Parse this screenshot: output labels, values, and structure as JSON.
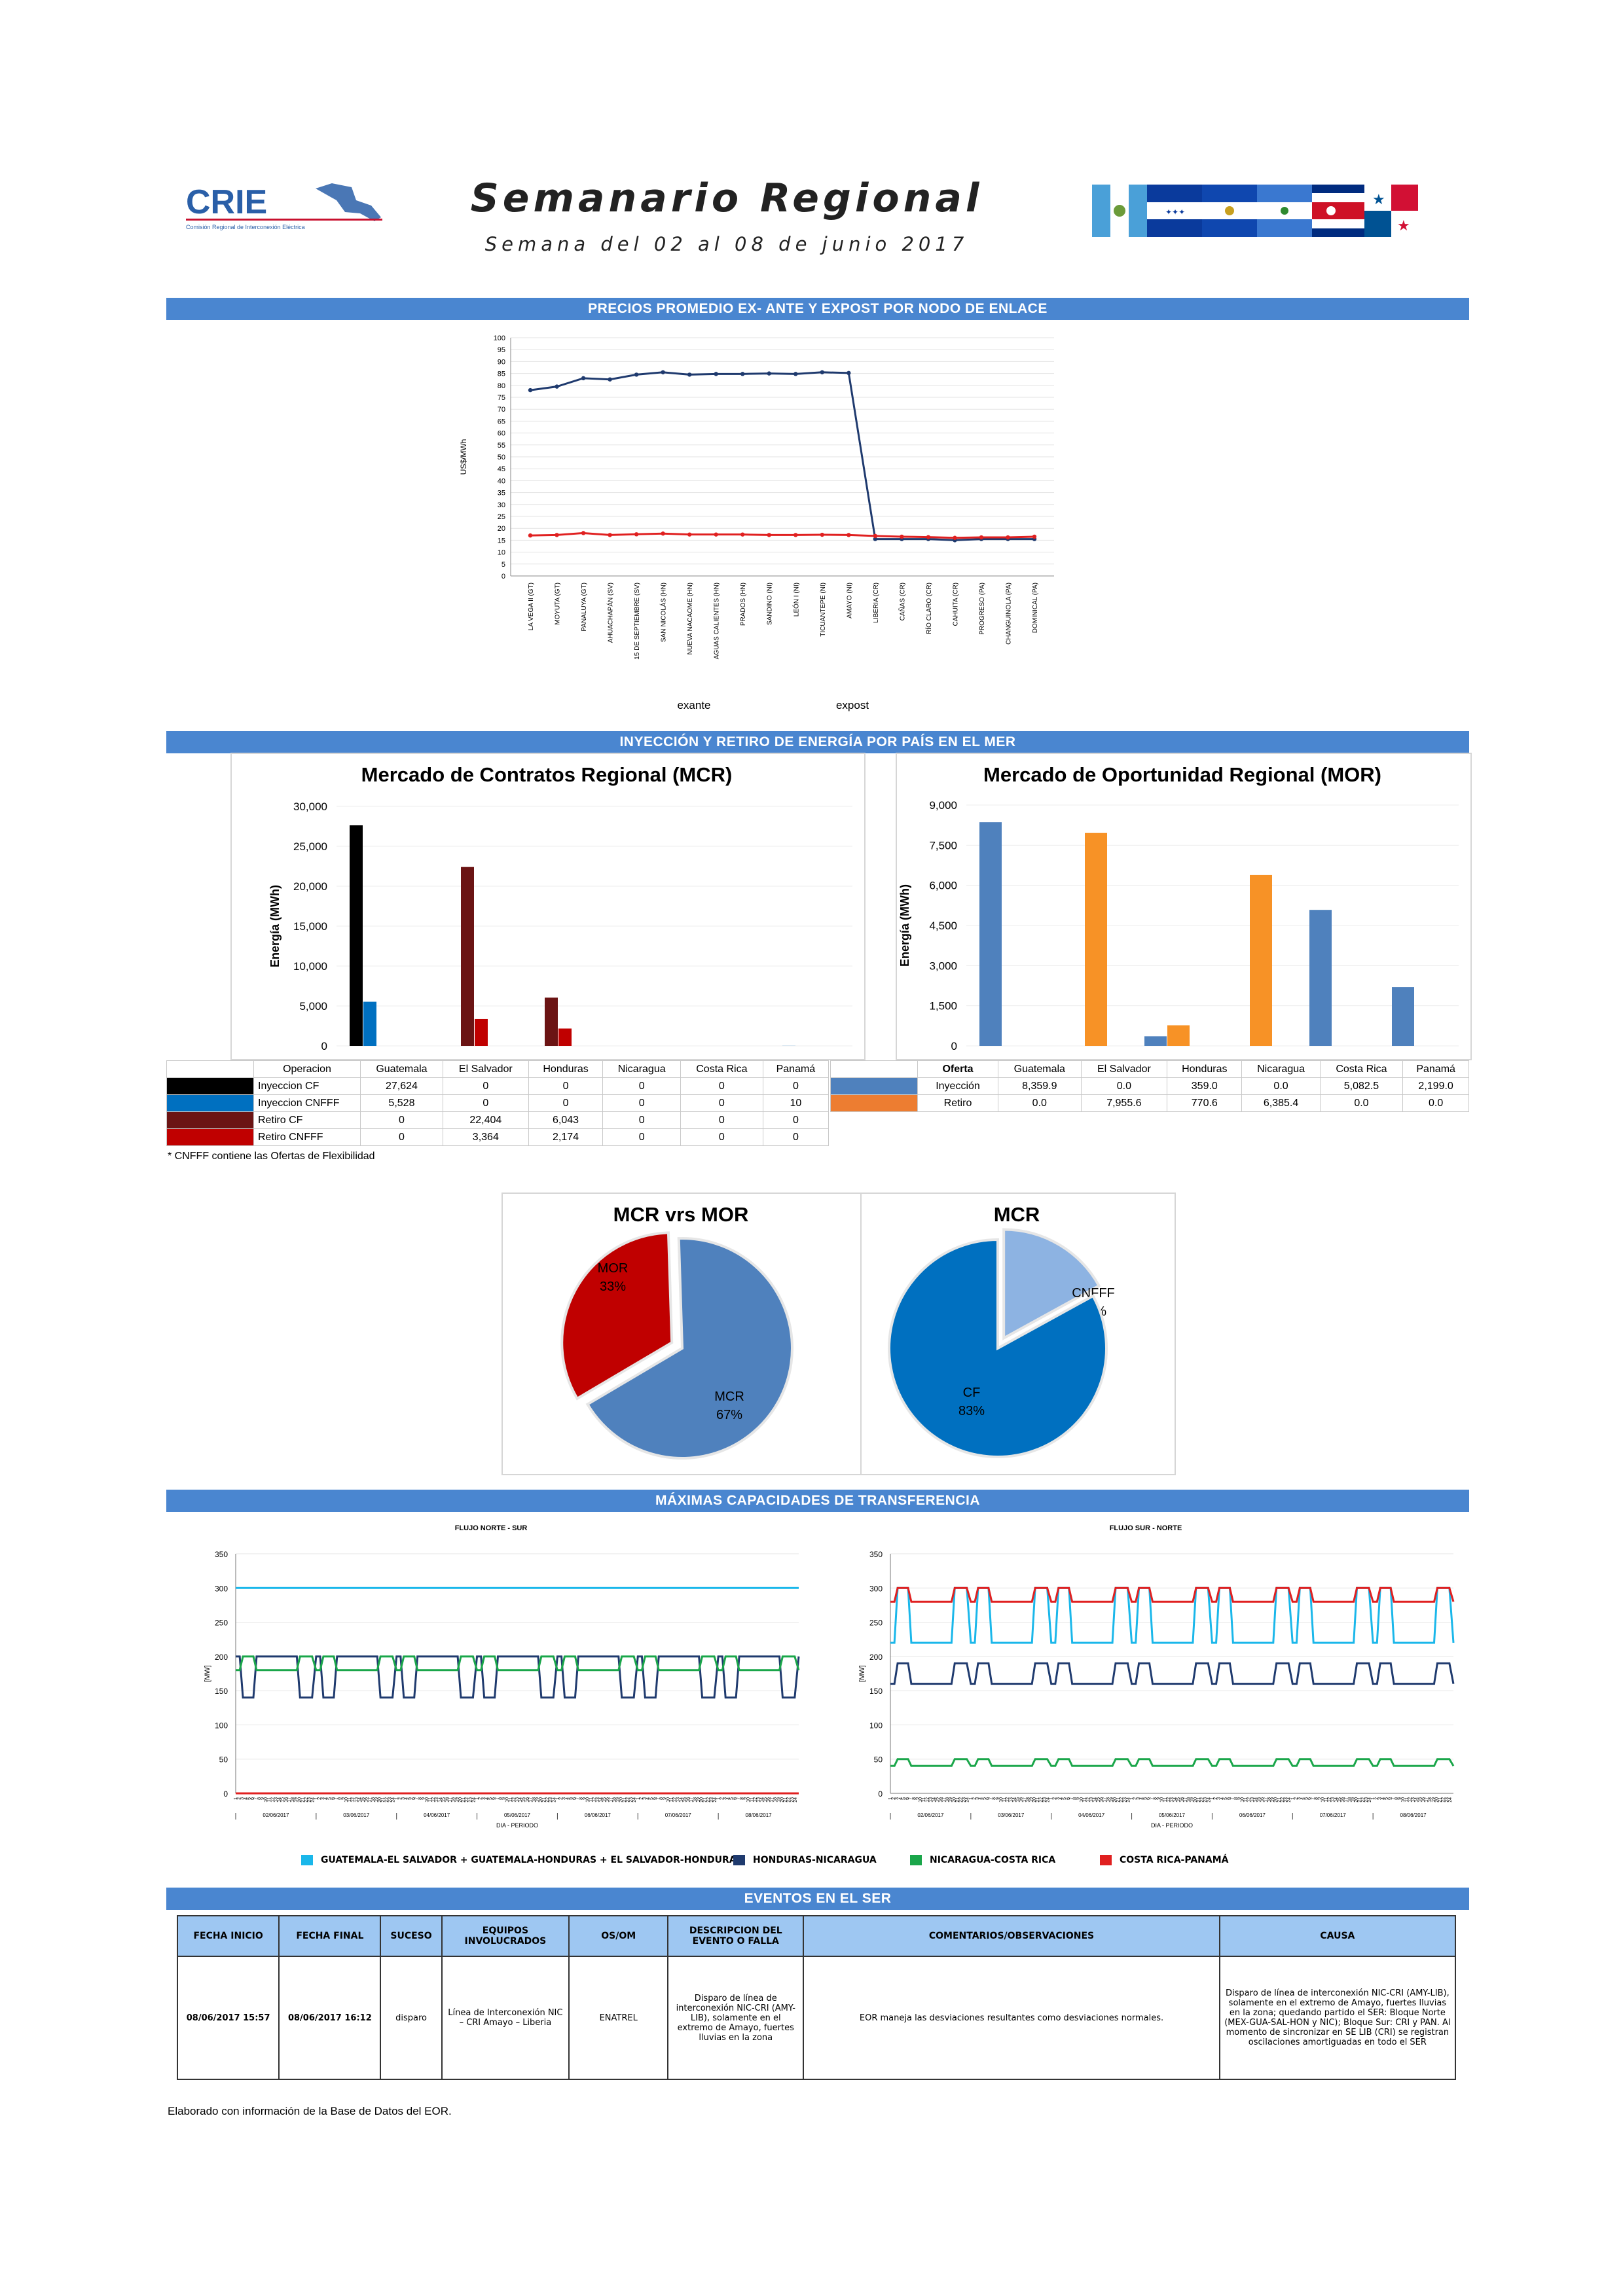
{
  "header": {
    "logo_text": "CRIE",
    "logo_subtitle": "Comisión Regional de Interconexión Eléctrica",
    "title": "Semanario Regional",
    "subtitle": "Semana del 02 al 08 de junio 2017"
  },
  "section_titles": {
    "prices": "PRECIOS PROMEDIO EX- ANTE Y EXPOST POR NODO DE ENLACE",
    "energy": "INYECCIÓN Y RETIRO DE ENERGÍA POR PAÍS EN EL MER",
    "transfer": "MÁXIMAS CAPACIDADES DE TRANSFERENCIA",
    "events": "EVENTOS EN EL SER"
  },
  "chart_data": [
    {
      "type": "line",
      "ylabel": "US$/MWh",
      "ylim": [
        0,
        100
      ],
      "yticks": [
        0,
        5,
        10,
        15,
        20,
        25,
        30,
        35,
        40,
        45,
        50,
        55,
        60,
        65,
        70,
        75,
        80,
        85,
        90,
        95,
        100
      ],
      "categories": [
        "LA VEGA II (GT)",
        "MOYUTA (GT)",
        "PANALUYA (GT)",
        "AHUACHAPÁN (SV)",
        "15 DE SEPTIEMBRE (SV)",
        "SAN NICOLÁS (HN)",
        "NUEVA NACAOME (HN)",
        "AGUAS CALIENTES (HN)",
        "PRADOS (HN)",
        "SANDINO (NI)",
        "LEÓN I (NI)",
        "TICUANTEPE (NI)",
        "AMAYO (NI)",
        "LIBERIA (CR)",
        "CAÑAS (CR)",
        "RÍO CLARO (CR)",
        "CAHUITA (CR)",
        "PROGRESO (PA)",
        "CHANGUINOLA (PA)",
        "DOMINICAL (PA)"
      ],
      "series": [
        {
          "name": "exante",
          "color": "#1f3a6e",
          "values": [
            78,
            79.5,
            83,
            82.5,
            84.5,
            85.5,
            84.5,
            84.8,
            84.8,
            85,
            84.8,
            85.5,
            85.2,
            15.5,
            15.5,
            15.5,
            15,
            15.5,
            15.5,
            15.5
          ]
        },
        {
          "name": "expost",
          "color": "#e02020",
          "values": [
            17,
            17.2,
            18,
            17.2,
            17.5,
            17.8,
            17.4,
            17.4,
            17.4,
            17.2,
            17.2,
            17.3,
            17.2,
            16.8,
            16.5,
            16.3,
            16,
            16.2,
            16.2,
            16.5
          ]
        }
      ]
    },
    {
      "type": "bar",
      "title": "Mercado de Contratos Regional (MCR)",
      "ylabel": "Energía (MWh)",
      "ylim": [
        0,
        30000
      ],
      "yticks": [
        "0",
        "5,000",
        "10,000",
        "15,000",
        "20,000",
        "25,000",
        "30,000"
      ],
      "categories": [
        "Guatemala",
        "El Salvador",
        "Honduras",
        "Nicaragua",
        "Costa Rica",
        "Panamá"
      ],
      "series": [
        {
          "name": "Inyeccion CF",
          "color": "#000000",
          "values": [
            27624,
            0,
            0,
            0,
            0,
            0
          ]
        },
        {
          "name": "Inyeccion CNFFF",
          "color": "#0070c0",
          "values": [
            5528,
            0,
            0,
            0,
            0,
            10
          ]
        },
        {
          "name": "Retiro CF",
          "color": "#6b1414",
          "values": [
            0,
            22404,
            6043,
            0,
            0,
            0
          ]
        },
        {
          "name": "Retiro CNFFF",
          "color": "#c00000",
          "values": [
            0,
            3364,
            2174,
            0,
            0,
            0
          ]
        }
      ]
    },
    {
      "type": "bar",
      "title": "Mercado de Oportunidad Regional (MOR)",
      "ylabel": "Energía (MWh)",
      "ylim": [
        0,
        9000
      ],
      "yticks": [
        "0",
        "1,500",
        "3,000",
        "4,500",
        "6,000",
        "7,500",
        "9,000"
      ],
      "categories": [
        "Guatemala",
        "El Salvador",
        "Honduras",
        "Nicaragua",
        "Costa Rica",
        "Panamá"
      ],
      "series": [
        {
          "name": "Inyección",
          "color": "#4f81bd",
          "values": [
            8359.9,
            0.0,
            359.0,
            0.0,
            5082.5,
            2199.0
          ]
        },
        {
          "name": "Retiro",
          "color": "#f79226",
          "values": [
            0.0,
            7955.6,
            770.6,
            6385.4,
            0.0,
            0.0
          ]
        }
      ]
    },
    {
      "type": "pie",
      "title": "MCR vrs MOR",
      "slices": [
        {
          "label": "MOR",
          "value": 33,
          "color": "#c00000"
        },
        {
          "label": "MCR",
          "value": 67,
          "color": "#4f81bd"
        }
      ]
    },
    {
      "type": "pie",
      "title": "MCR",
      "slices": [
        {
          "label": "CNFFF",
          "value": 17,
          "color": "#8db3e2"
        },
        {
          "label": "CF",
          "value": 83,
          "color": "#0070c0"
        }
      ]
    },
    {
      "type": "line",
      "title": "FLUJO NORTE - SUR",
      "ylabel": "[MW]",
      "xlabel": "DIA - PERIODO",
      "ylim": [
        0,
        350
      ],
      "yticks": [
        0,
        50,
        100,
        150,
        200,
        250,
        300,
        350
      ],
      "days": [
        "02/06/2017",
        "03/06/2017",
        "04/06/2017",
        "05/06/2017",
        "06/06/2017",
        "07/06/2017",
        "08/06/2017"
      ],
      "series": [
        {
          "name": "GUATEMALA-EL SALVADOR + GUATEMALA-HONDURAS + EL SALVADOR-HONDURAS",
          "color": "#1ab7ea",
          "base": 300,
          "dip": 300
        },
        {
          "name": "HONDURAS-NICARAGUA",
          "color": "#1f3a6e",
          "base": 200,
          "dip": 140
        },
        {
          "name": "NICARAGUA-COSTA RICA",
          "color": "#1aa64a",
          "base": 180,
          "dip": 200
        },
        {
          "name": "COSTA RICA-PANAMÁ",
          "color": "#e02020",
          "base": 0,
          "dip": 0
        }
      ]
    },
    {
      "type": "line",
      "title": "FLUJO SUR - NORTE",
      "ylabel": "[MW]",
      "xlabel": "DIA - PERIODO",
      "ylim": [
        0,
        350
      ],
      "yticks": [
        0,
        50,
        100,
        150,
        200,
        250,
        300,
        350
      ],
      "days": [
        "02/06/2017",
        "03/06/2017",
        "04/06/2017",
        "05/06/2017",
        "06/06/2017",
        "07/06/2017",
        "08/06/2017"
      ],
      "series": [
        {
          "name": "GUATEMALA-EL SALVADOR + GUATEMALA-HONDURAS + EL SALVADOR-HONDURAS",
          "color": "#1ab7ea",
          "base": 220,
          "dip": 300
        },
        {
          "name": "HONDURAS-NICARAGUA",
          "color": "#1f3a6e",
          "base": 160,
          "dip": 190
        },
        {
          "name": "NICARAGUA-COSTA RICA",
          "color": "#1aa64a",
          "base": 40,
          "dip": 50
        },
        {
          "name": "COSTA RICA-PANAMÁ",
          "color": "#e02020",
          "base": 280,
          "dip": 300
        }
      ]
    }
  ],
  "mcr_table": {
    "header": [
      "Operacion",
      "Guatemala",
      "El Salvador",
      "Honduras",
      "Nicaragua",
      "Costa Rica",
      "Panamá"
    ],
    "rows": [
      {
        "label": "Inyeccion CF",
        "color": "#000000",
        "values": [
          "27,624",
          "0",
          "0",
          "0",
          "0",
          "0"
        ]
      },
      {
        "label": "Inyeccion CNFFF",
        "color": "#0070c0",
        "values": [
          "5,528",
          "0",
          "0",
          "0",
          "0",
          "10"
        ]
      },
      {
        "label": "Retiro CF",
        "color": "#6b1414",
        "values": [
          "0",
          "22,404",
          "6,043",
          "0",
          "0",
          "0"
        ]
      },
      {
        "label": "Retiro CNFFF",
        "color": "#c00000",
        "values": [
          "0",
          "3,364",
          "2,174",
          "0",
          "0",
          "0"
        ]
      }
    ],
    "footnote": "* CNFFF contiene las Ofertas de Flexibilidad"
  },
  "mor_table": {
    "header": [
      "Oferta",
      "Guatemala",
      "El Salvador",
      "Honduras",
      "Nicaragua",
      "Costa Rica",
      "Panamá"
    ],
    "rows": [
      {
        "label": "Inyección",
        "color": "#4f81bd",
        "values": [
          "8,359.9",
          "0.0",
          "359.0",
          "0.0",
          "5,082.5",
          "2,199.0"
        ]
      },
      {
        "label": "Retiro",
        "color": "#ed7d31",
        "values": [
          "0.0",
          "7,955.6",
          "770.6",
          "6,385.4",
          "0.0",
          "0.0"
        ]
      }
    ]
  },
  "price_legend": {
    "exante": "exante",
    "expost": "expost"
  },
  "transfer_legend": [
    {
      "label": "GUATEMALA-EL SALVADOR + GUATEMALA-HONDURAS + EL SALVADOR-HONDURAS",
      "color": "#1ab7ea"
    },
    {
      "label": "HONDURAS-NICARAGUA",
      "color": "#1f3a6e"
    },
    {
      "label": "NICARAGUA-COSTA RICA",
      "color": "#1aa64a"
    },
    {
      "label": "COSTA RICA-PANAMÁ",
      "color": "#e02020"
    }
  ],
  "events_table": {
    "headers": [
      "FECHA INICIO",
      "FECHA FINAL",
      "SUCESO",
      "EQUIPOS INVOLUCRADOS",
      "OS/OM",
      "DESCRIPCION DEL EVENTO O FALLA",
      "COMENTARIOS/OBSERVACIONES",
      "CAUSA"
    ],
    "row": [
      "08/06/2017 15:57",
      "08/06/2017 16:12",
      "disparo",
      "Línea de Interconexión NIC – CRI Amayo – Liberia",
      "ENATREL",
      "Disparo de línea de interconexión NIC-CRI (AMY-LIB), solamente en el extremo de Amayo, fuertes lluvias en la zona",
      "EOR maneja las desviaciones resultantes como desviaciones normales.",
      "Disparo de línea de interconexión NIC-CRI (AMY-LIB), solamente en el extremo de Amayo, fuertes lluvias en la zona; quedando partido el SER: Bloque Norte (MEX-GUA-SAL-HON y NIC); Bloque Sur: CRI y PAN. Al momento de sincronizar en SE LIB (CRI) se registran oscilaciones amortiguadas en todo el SER"
    ]
  },
  "footer": "Elaborado con información de la Base de Datos del EOR."
}
